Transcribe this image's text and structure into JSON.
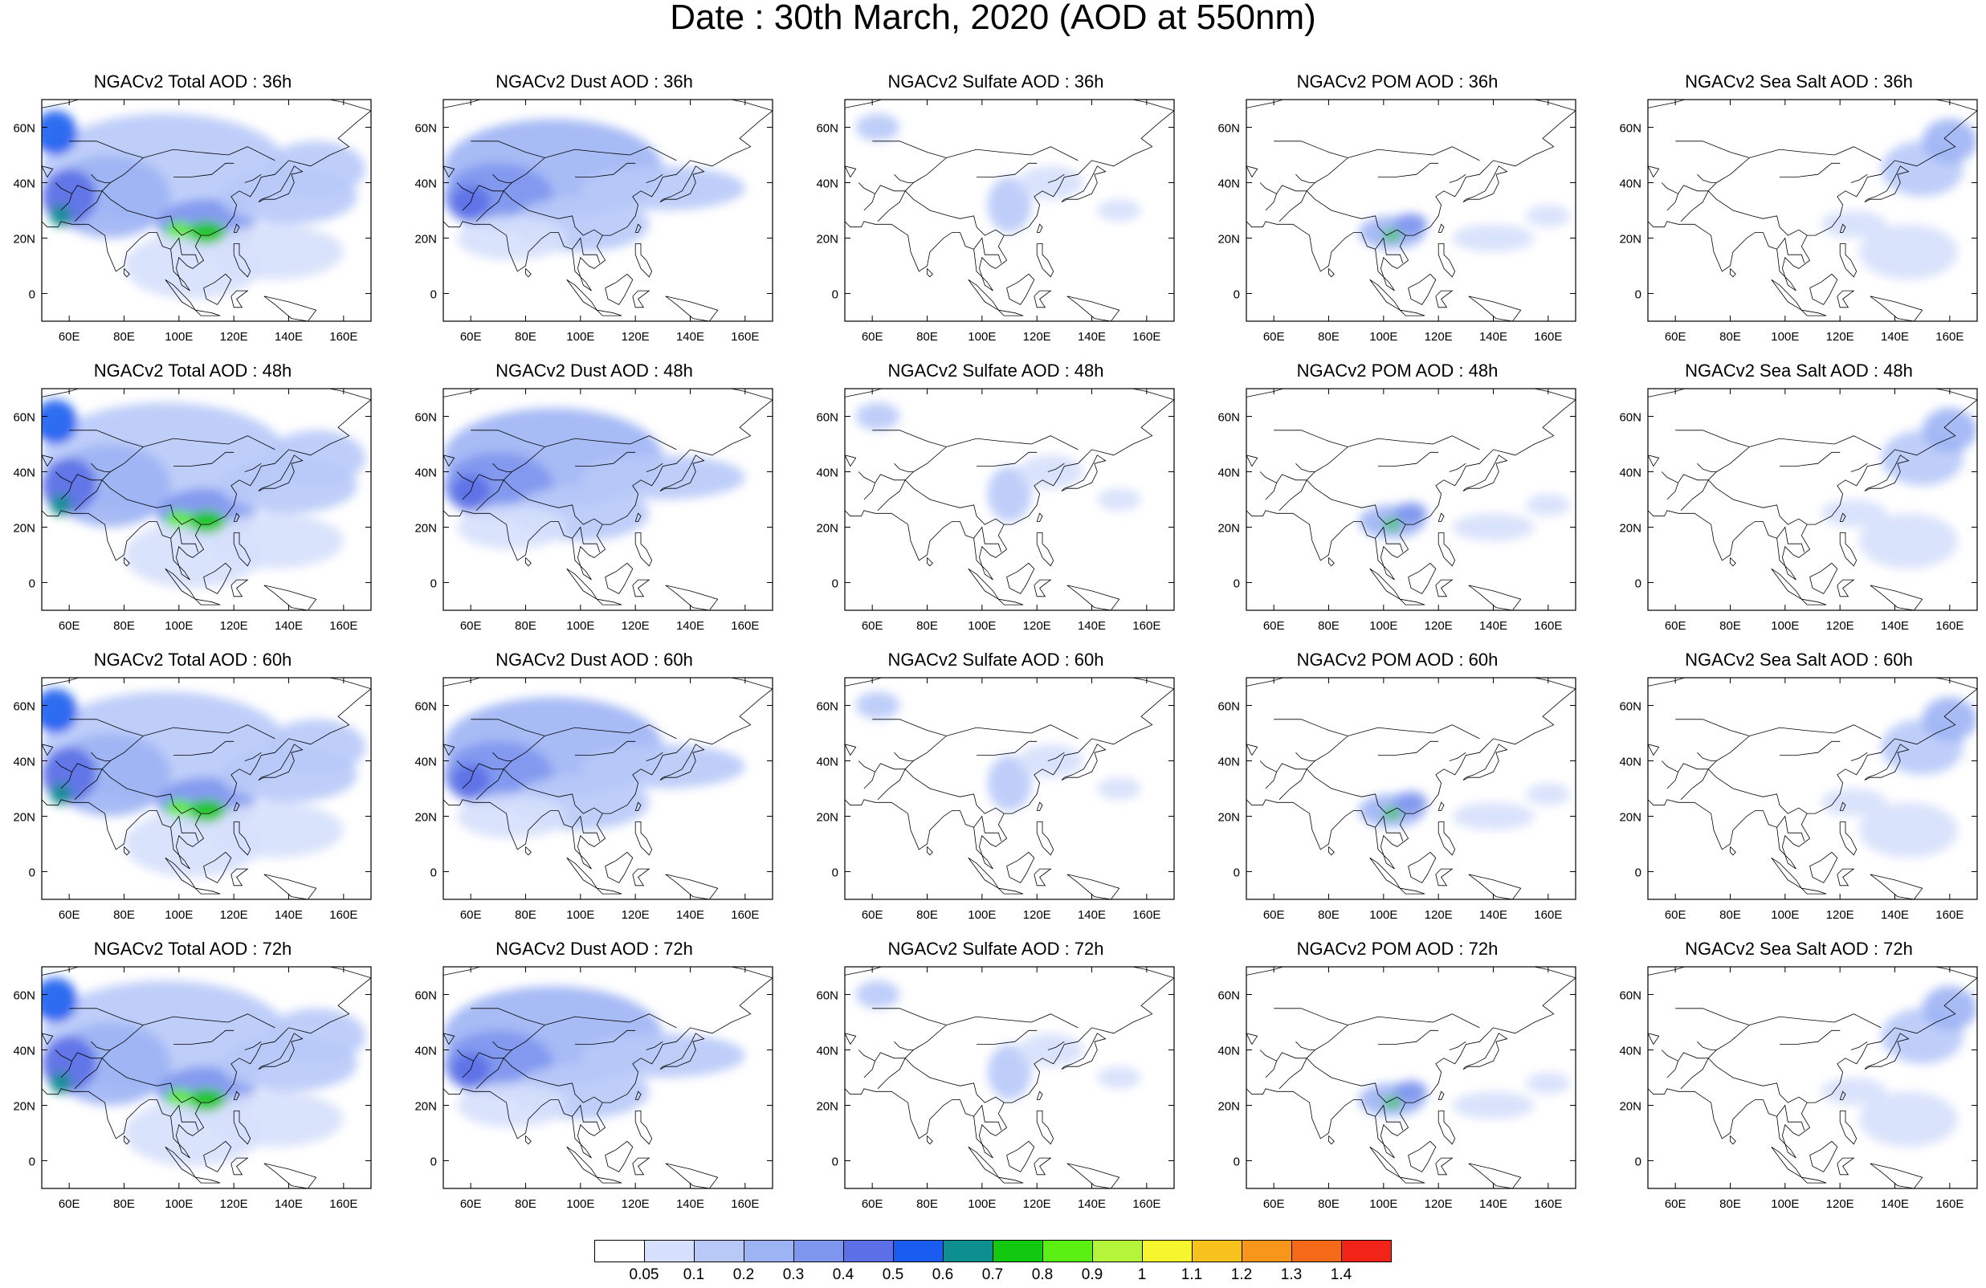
{
  "title": "Date : 30th March, 2020 (AOD at 550nm)",
  "lat_labels": [
    "60N",
    "40N",
    "20N",
    "0"
  ],
  "lon_labels": [
    "60E",
    "80E",
    "100E",
    "120E",
    "140E",
    "160E"
  ],
  "panels": [
    {
      "title": "NGACv2 Total AOD : 36h",
      "species": "total"
    },
    {
      "title": "NGACv2 Dust AOD : 36h",
      "species": "dust"
    },
    {
      "title": "NGACv2 Sulfate AOD : 36h",
      "species": "sulfate"
    },
    {
      "title": "NGACv2 POM AOD : 36h",
      "species": "pom"
    },
    {
      "title": "NGACv2 Sea Salt AOD : 36h",
      "species": "seasalt"
    },
    {
      "title": "NGACv2 Total AOD : 48h",
      "species": "total"
    },
    {
      "title": "NGACv2 Dust AOD : 48h",
      "species": "dust"
    },
    {
      "title": "NGACv2 Sulfate AOD : 48h",
      "species": "sulfate"
    },
    {
      "title": "NGACv2 POM AOD : 48h",
      "species": "pom"
    },
    {
      "title": "NGACv2 Sea Salt AOD : 48h",
      "species": "seasalt"
    },
    {
      "title": "NGACv2 Total AOD : 60h",
      "species": "total"
    },
    {
      "title": "NGACv2 Dust AOD : 60h",
      "species": "dust"
    },
    {
      "title": "NGACv2 Sulfate AOD : 60h",
      "species": "sulfate"
    },
    {
      "title": "NGACv2 POM AOD : 60h",
      "species": "pom"
    },
    {
      "title": "NGACv2 Sea Salt AOD : 60h",
      "species": "seasalt"
    },
    {
      "title": "NGACv2 Total AOD : 72h",
      "species": "total"
    },
    {
      "title": "NGACv2 Dust AOD : 72h",
      "species": "dust"
    },
    {
      "title": "NGACv2 Sulfate AOD : 72h",
      "species": "sulfate"
    },
    {
      "title": "NGACv2 POM AOD : 72h",
      "species": "pom"
    },
    {
      "title": "NGACv2 Sea Salt  AOD : 72h",
      "species": "seasalt"
    }
  ],
  "colorbar": {
    "labels": [
      "0.05",
      "0.1",
      "0.2",
      "0.3",
      "0.4",
      "0.5",
      "0.6",
      "0.7",
      "0.8",
      "0.9",
      "1",
      "1.1",
      "1.2",
      "1.3",
      "1.4"
    ],
    "colors": [
      "#ffffff",
      "#d6e0fc",
      "#b8c9f8",
      "#9db4f4",
      "#7f96ee",
      "#5b6fe6",
      "#1a5cf0",
      "#0d8f8f",
      "#13c90f",
      "#5af014",
      "#b4f43a",
      "#f6f62e",
      "#f7c21c",
      "#f7961a",
      "#f56a18",
      "#f22418"
    ]
  }
}
